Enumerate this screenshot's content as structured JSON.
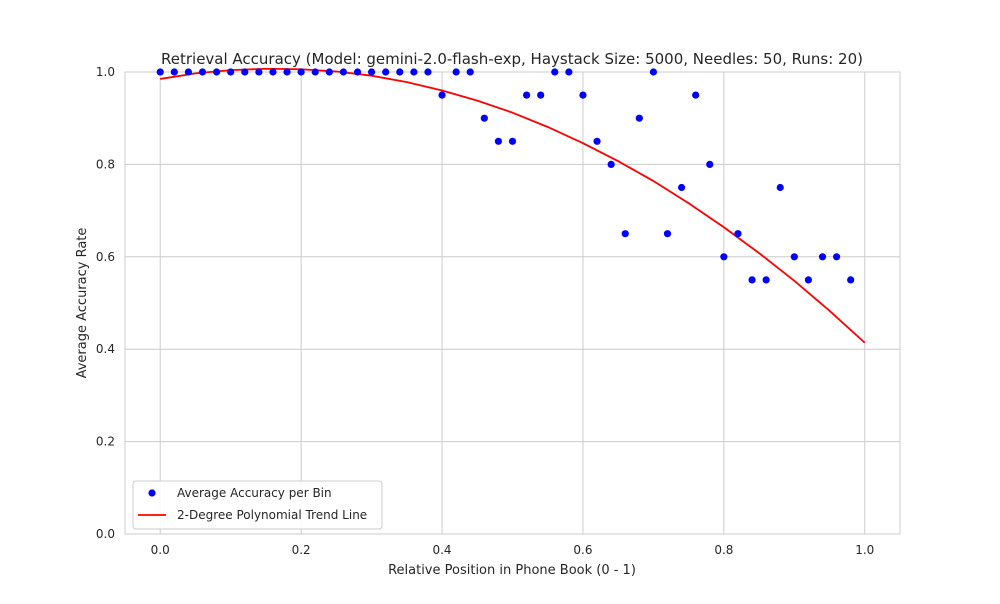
{
  "chart_data": {
    "type": "scatter",
    "title": "Retrieval Accuracy (Model: gemini-2.0-flash-exp, Haystack Size: 5000, Needles: 50, Runs: 20)",
    "xlabel": "Relative Position in Phone Book (0 - 1)",
    "ylabel": "Average Accuracy Rate",
    "xlim": [
      -0.05,
      1.05
    ],
    "ylim": [
      0.0,
      1.0
    ],
    "x_ticks": [
      0.0,
      0.2,
      0.4,
      0.6,
      0.8,
      1.0
    ],
    "x_tick_labels": [
      "0.0",
      "0.2",
      "0.4",
      "0.6",
      "0.8",
      "1.0"
    ],
    "y_ticks": [
      0.0,
      0.2,
      0.4,
      0.6,
      0.8,
      1.0
    ],
    "y_tick_labels": [
      "0.0",
      "0.2",
      "0.4",
      "0.6",
      "0.8",
      "1.0"
    ],
    "grid": true,
    "legend_position": "lower-left",
    "series": [
      {
        "name": "Average Accuracy per Bin",
        "kind": "scatter",
        "color": "#0000ff",
        "x": [
          0.0,
          0.02,
          0.04,
          0.06,
          0.08,
          0.1,
          0.12,
          0.14,
          0.16,
          0.18,
          0.2,
          0.22,
          0.24,
          0.26,
          0.28,
          0.3,
          0.32,
          0.34,
          0.36,
          0.38,
          0.4,
          0.42,
          0.44,
          0.46,
          0.48,
          0.5,
          0.52,
          0.54,
          0.56,
          0.58,
          0.6,
          0.62,
          0.64,
          0.66,
          0.68,
          0.7,
          0.72,
          0.74,
          0.76,
          0.78,
          0.8,
          0.82,
          0.84,
          0.86,
          0.88,
          0.9,
          0.92,
          0.94,
          0.96,
          0.98
        ],
        "y": [
          1.0,
          1.0,
          1.0,
          1.0,
          1.0,
          1.0,
          1.0,
          1.0,
          1.0,
          1.0,
          1.0,
          1.0,
          1.0,
          1.0,
          1.0,
          1.0,
          1.0,
          1.0,
          1.0,
          1.0,
          0.95,
          1.0,
          1.0,
          0.9,
          0.85,
          0.85,
          0.95,
          0.95,
          1.0,
          1.0,
          0.95,
          0.85,
          0.8,
          0.65,
          0.9,
          1.0,
          0.65,
          0.75,
          0.95,
          0.8,
          0.6,
          0.65,
          0.55,
          0.55,
          0.75,
          0.6,
          0.55,
          0.6,
          0.6,
          0.55
        ]
      },
      {
        "name": "2-Degree Polynomial Trend Line",
        "kind": "line",
        "color": "#ff0000",
        "x": [
          0.0,
          0.05,
          0.1,
          0.15,
          0.2,
          0.25,
          0.3,
          0.35,
          0.4,
          0.45,
          0.5,
          0.55,
          0.6,
          0.65,
          0.7,
          0.75,
          0.8,
          0.85,
          0.9,
          0.95,
          1.0
        ],
        "y": [
          0.985,
          0.997,
          1.004,
          1.007,
          1.006,
          1.001,
          0.992,
          0.978,
          0.96,
          0.938,
          0.912,
          0.881,
          0.846,
          0.807,
          0.764,
          0.716,
          0.664,
          0.608,
          0.548,
          0.483,
          0.414
        ]
      }
    ]
  }
}
